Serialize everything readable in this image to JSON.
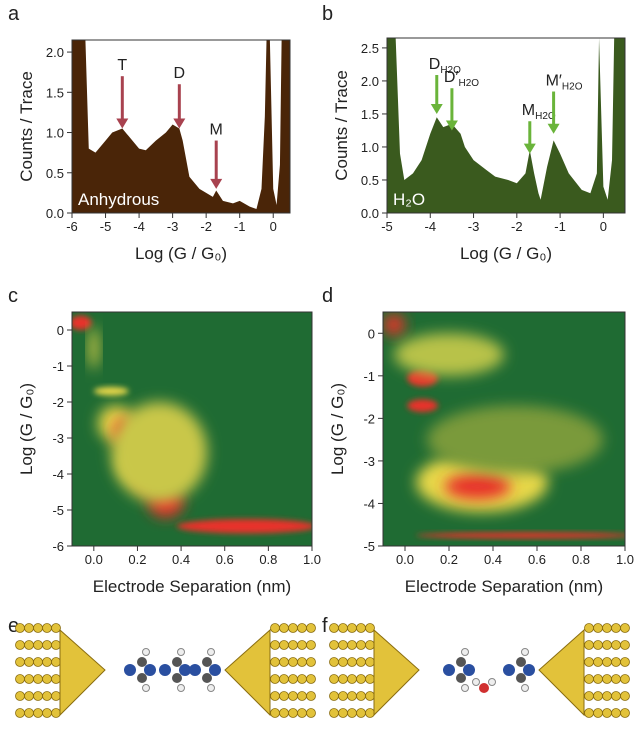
{
  "chart_data": [
    {
      "type": "histogram-area",
      "label": "a",
      "color": "#4a2508",
      "arrow_color": "#a8424f",
      "xlabel": "Log (G / G₀)",
      "ylabel": "Counts / Trace",
      "x": [
        -6,
        -5.8,
        -5.6,
        -5.5,
        -5.3,
        -5,
        -4.8,
        -4.5,
        -4.3,
        -4,
        -3.8,
        -3.5,
        -3.2,
        -3,
        -2.8,
        -2.7,
        -2.5,
        -2.2,
        -2,
        -1.8,
        -1.7,
        -1.5,
        -1.2,
        -1,
        -0.7,
        -0.5,
        -0.35,
        -0.25,
        -0.2,
        -0.1,
        0,
        0.1,
        0.2,
        0.25,
        0.4,
        0.5
      ],
      "values": [
        2.15,
        2.15,
        2.15,
        0.8,
        0.75,
        0.9,
        1.0,
        1.05,
        0.95,
        0.8,
        0.78,
        0.9,
        1.0,
        1.1,
        1.05,
        0.9,
        0.45,
        0.3,
        0.25,
        0.2,
        0.28,
        0.15,
        0.12,
        0.15,
        0.08,
        0.05,
        0.3,
        1.2,
        2.15,
        2.15,
        0.3,
        0.1,
        0.6,
        2.15,
        2.15,
        2.15
      ],
      "xlim": [
        -6,
        0.5
      ],
      "ylim": [
        0,
        2.15
      ],
      "xticks": [
        -6,
        -5,
        -4,
        -3,
        -2,
        -1,
        0
      ],
      "yticks": [
        {
          "value": 0,
          "label": "0.0"
        },
        0.5,
        {
          "value": 1,
          "label": "1.0"
        },
        1.5,
        {
          "value": 2,
          "label": "2.0"
        }
      ],
      "annotations": [
        {
          "text": "T"
        },
        {
          "text": "D"
        },
        {
          "text": "M"
        },
        {
          "text": "Anhydrous"
        }
      ]
    },
    {
      "type": "histogram-area",
      "label": "b",
      "color": "#3a5a1e",
      "arrow_color": "#6ab43a",
      "xlabel": "Log (G / G₀)",
      "ylabel": "Counts / Trace",
      "x": [
        -5,
        -4.8,
        -4.7,
        -4.6,
        -4.4,
        -4.2,
        -4,
        -3.85,
        -3.7,
        -3.5,
        -3.3,
        -3.2,
        -3,
        -2.7,
        -2.5,
        -2.2,
        -2,
        -1.8,
        -1.7,
        -1.6,
        -1.5,
        -1.45,
        -1.3,
        -1.15,
        -1,
        -0.8,
        -0.5,
        -0.3,
        -0.15,
        -0.1,
        0,
        0.1,
        0.2,
        0.25,
        0.4,
        0.5
      ],
      "values": [
        2.65,
        2.65,
        0.9,
        0.5,
        0.6,
        0.8,
        1.2,
        1.45,
        1.3,
        1.35,
        1.2,
        1.0,
        0.8,
        0.65,
        0.55,
        0.5,
        0.45,
        0.6,
        0.95,
        0.6,
        0.3,
        0.2,
        0.7,
        1.1,
        0.9,
        0.6,
        0.35,
        0.3,
        0.6,
        2.65,
        0.4,
        0.2,
        0.8,
        2.65,
        2.65,
        2.65
      ],
      "xlim": [
        -5,
        0.5
      ],
      "ylim": [
        0,
        2.65
      ],
      "xticks": [
        -5,
        -4,
        -3,
        -2,
        -1,
        0
      ],
      "yticks": [
        {
          "value": 0,
          "label": "0.0"
        },
        0.5,
        {
          "value": 1,
          "label": "1.0"
        },
        1.5,
        {
          "value": 2,
          "label": "2.0"
        },
        2.5
      ],
      "annotations": [
        {
          "text": "D",
          "sub": "H2O"
        },
        {
          "text": "D′",
          "sub": "H2O"
        },
        {
          "text": "M",
          "sub": "H2O"
        },
        {
          "text": "M′",
          "sub": "H2O"
        },
        {
          "text": "H₂O"
        }
      ]
    },
    {
      "type": "heatmap",
      "label": "c",
      "xlabel": "Electrode Separation (nm)",
      "ylabel": "Log (G / G₀)",
      "xlim": [
        -0.1,
        1.0
      ],
      "ylim": [
        -6,
        0.5
      ],
      "xticks": [
        {
          "value": 0,
          "label": "0.0"
        },
        0.2,
        0.4,
        0.6,
        0.8,
        {
          "value": 1,
          "label": "1.0"
        }
      ],
      "yticks": [
        0,
        -1,
        -2,
        -3,
        -4,
        -5,
        -6
      ]
    },
    {
      "type": "heatmap",
      "label": "d",
      "xlabel": "Electrode Separation (nm)",
      "ylabel": "Log (G / G₀)",
      "xlim": [
        -0.1,
        1.0
      ],
      "ylim": [
        -5,
        0.5
      ],
      "xticks": [
        {
          "value": 0,
          "label": "0.0"
        },
        0.2,
        0.4,
        0.6,
        0.8,
        {
          "value": 1,
          "label": "1.0"
        }
      ],
      "yticks": [
        0,
        -1,
        -2,
        -3,
        -4,
        -5
      ]
    }
  ],
  "images": [
    {
      "label": "e"
    },
    {
      "label": "f"
    }
  ]
}
